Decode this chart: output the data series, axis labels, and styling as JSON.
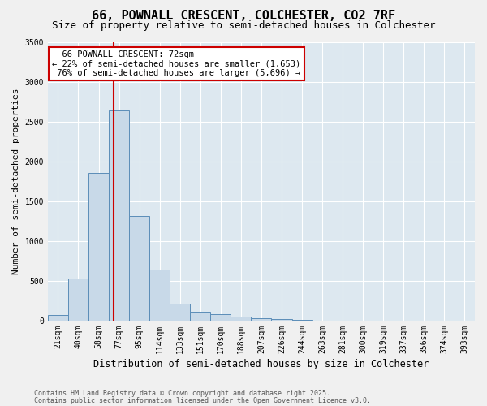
{
  "title_line1": "66, POWNALL CRESCENT, COLCHESTER, CO2 7RF",
  "title_line2": "Size of property relative to semi-detached houses in Colchester",
  "xlabel": "Distribution of semi-detached houses by size in Colchester",
  "ylabel": "Number of semi-detached properties",
  "footnote1": "Contains HM Land Registry data © Crown copyright and database right 2025.",
  "footnote2": "Contains public sector information licensed under the Open Government Licence v3.0.",
  "bar_color": "#c8d9e8",
  "bar_edge_color": "#5b8db8",
  "bg_color": "#dde8f0",
  "grid_color": "#ffffff",
  "fig_color": "#f0f0f0",
  "annotation_box_color": "#cc0000",
  "vline_color": "#cc0000",
  "categories": [
    "21sqm",
    "40sqm",
    "58sqm",
    "77sqm",
    "95sqm",
    "114sqm",
    "133sqm",
    "151sqm",
    "170sqm",
    "188sqm",
    "207sqm",
    "226sqm",
    "244sqm",
    "263sqm",
    "281sqm",
    "300sqm",
    "319sqm",
    "337sqm",
    "356sqm",
    "374sqm",
    "393sqm"
  ],
  "values": [
    75,
    530,
    1850,
    2640,
    1310,
    640,
    215,
    115,
    80,
    55,
    30,
    15,
    8,
    3,
    2,
    1,
    0,
    0,
    0,
    0,
    0
  ],
  "ylim": [
    0,
    3500
  ],
  "yticks": [
    0,
    500,
    1000,
    1500,
    2000,
    2500,
    3000,
    3500
  ],
  "property_label": "66 POWNALL CRESCENT: 72sqm",
  "pct_smaller": 22,
  "pct_smaller_n": 1653,
  "pct_larger": 76,
  "pct_larger_n": 5696,
  "vline_x": 2.75,
  "title_fontsize": 11,
  "subtitle_fontsize": 9,
  "axis_label_fontsize": 8,
  "tick_fontsize": 7,
  "annotation_fontsize": 7.5
}
